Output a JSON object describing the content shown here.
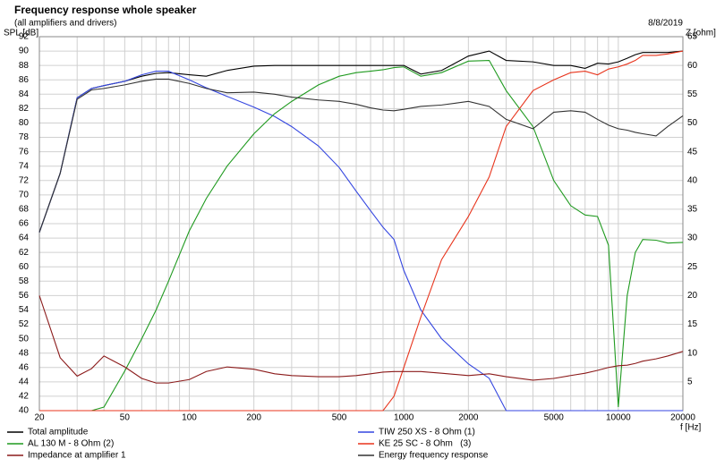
{
  "chart_data": {
    "type": "line",
    "title": "Frequency response whole speaker",
    "subtitle": "(all amplifiers and drivers)",
    "date": "8/8/2019",
    "y_label": "SPL [dB]",
    "y2_label": "Z [ohm]",
    "x_label": "f [Hz]",
    "log_x": true,
    "grid": true,
    "x": [
      20,
      25,
      30,
      35,
      40,
      50,
      60,
      70,
      80,
      100,
      120,
      150,
      200,
      250,
      300,
      400,
      500,
      600,
      700,
      800,
      900,
      1000,
      1200,
      1500,
      2000,
      2500,
      3000,
      4000,
      5000,
      6000,
      7000,
      8000,
      9000,
      10000,
      11000,
      12000,
      13000,
      15000,
      17000,
      20000
    ],
    "xlim": [
      20,
      20000
    ],
    "xticks": [
      20,
      50,
      100,
      200,
      500,
      1000,
      2000,
      5000,
      10000,
      20000
    ],
    "xminorticks": [
      30,
      40,
      60,
      70,
      80,
      90,
      300,
      400,
      600,
      700,
      800,
      900,
      3000,
      4000,
      6000,
      7000,
      8000,
      9000
    ],
    "ylim": [
      40,
      92
    ],
    "yticks": [
      40,
      42,
      44,
      46,
      48,
      50,
      52,
      54,
      56,
      58,
      60,
      62,
      64,
      66,
      68,
      70,
      72,
      74,
      76,
      78,
      80,
      82,
      84,
      86,
      88,
      90,
      92
    ],
    "y2lim": [
      0,
      65
    ],
    "y2ticks": [
      5,
      10,
      15,
      20,
      25,
      30,
      35,
      40,
      45,
      50,
      55,
      60,
      65
    ],
    "series": [
      {
        "name": "Total amplitude",
        "color": "#000000",
        "values": [
          64.8,
          73,
          83.5,
          84.8,
          85.2,
          85.8,
          86.5,
          86.9,
          87,
          86.7,
          86.5,
          87.3,
          87.9,
          88,
          88,
          88,
          88,
          88,
          88,
          88,
          88,
          88,
          86.8,
          87.3,
          89.3,
          90,
          88.7,
          88.5,
          88,
          88,
          87.6,
          88.3,
          88.2,
          88.5,
          89,
          89.5,
          89.8,
          89.8,
          89.8,
          90
        ]
      },
      {
        "name": "TIW 250 XS - 8 Ohm (1)",
        "color": "#3446e0",
        "values": [
          64.8,
          73,
          83.5,
          84.8,
          85.2,
          85.8,
          86.7,
          87.2,
          87.2,
          86,
          84.9,
          83.7,
          82.2,
          80.9,
          79.5,
          76.8,
          73.8,
          70.5,
          67.8,
          65.5,
          63.8,
          59.5,
          54,
          50,
          46.5,
          44.5,
          40,
          40,
          40,
          40,
          40,
          40,
          40,
          40,
          40,
          40,
          40,
          40,
          40,
          40
        ]
      },
      {
        "name": "AL 130 M - 8 Ohm (2)",
        "color": "#1f9a1f",
        "values": [
          40,
          40,
          40,
          40,
          40.5,
          45.5,
          50,
          54,
          58,
          65,
          69.5,
          74,
          78.5,
          81.3,
          83,
          85.3,
          86.5,
          87,
          87.2,
          87.4,
          87.7,
          87.8,
          86.5,
          87,
          88.6,
          88.7,
          84.5,
          79.5,
          72,
          68.5,
          67.2,
          67,
          63,
          40.5,
          56,
          62,
          63.8,
          63.7,
          63.3,
          63.4
        ]
      },
      {
        "name": "KE 25 SC - 8 Ohm   (3)",
        "color": "#e8341c",
        "values": [
          40,
          40,
          40,
          40,
          40,
          40,
          40,
          40,
          40,
          40,
          40,
          40,
          40,
          40,
          40,
          40,
          40,
          40,
          40,
          40,
          42,
          46,
          53,
          61,
          67,
          72.5,
          79.5,
          84.5,
          86,
          87,
          87.2,
          86.7,
          87.5,
          87.8,
          88.2,
          88.7,
          89.4,
          89.4,
          89.6,
          90
        ]
      },
      {
        "name": "Impedance at amplifier 1",
        "color": "#8b1a1a",
        "axis": "y2",
        "values": [
          20,
          9.2,
          6,
          7.3,
          9.5,
          7.6,
          5.6,
          4.8,
          4.8,
          5.4,
          6.8,
          7.6,
          7.2,
          6.4,
          6.1,
          5.9,
          5.9,
          6.1,
          6.4,
          6.7,
          6.8,
          6.8,
          6.8,
          6.5,
          6.1,
          6.4,
          5.9,
          5.3,
          5.6,
          6.1,
          6.5,
          7,
          7.5,
          7.8,
          7.9,
          8.2,
          8.6,
          9,
          9.5,
          10.3
        ]
      },
      {
        "name": "Energy frequency response",
        "color": "#333333",
        "values": [
          64.8,
          73,
          83.3,
          84.6,
          84.8,
          85.3,
          85.8,
          86.1,
          86.1,
          85.5,
          84.8,
          84.2,
          84.3,
          84,
          83.6,
          83.2,
          83,
          82.6,
          82.1,
          81.8,
          81.7,
          81.9,
          82.3,
          82.5,
          83,
          82.3,
          80.5,
          79.2,
          81.5,
          81.7,
          81.5,
          80.5,
          79.7,
          79.2,
          79,
          78.7,
          78.5,
          78.2,
          79.5,
          81
        ]
      }
    ]
  }
}
